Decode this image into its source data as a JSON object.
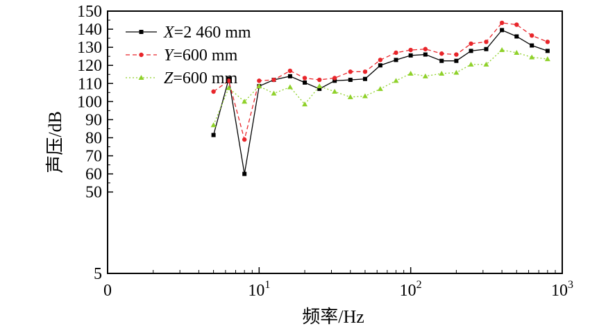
{
  "chart_data": {
    "type": "line",
    "xlabel": "频率/Hz",
    "ylabel": "声压/dB",
    "xscale": "log",
    "xlim": [
      1,
      1000
    ],
    "ylim": [
      5,
      150
    ],
    "x_ticks": [
      {
        "value": 1,
        "base": "0",
        "exp": ""
      },
      {
        "value": 10,
        "base": "10",
        "exp": "1"
      },
      {
        "value": 100,
        "base": "10",
        "exp": "2"
      },
      {
        "value": 1000,
        "base": "10",
        "exp": "3"
      }
    ],
    "y_ticks": [
      5,
      50,
      60,
      70,
      80,
      90,
      100,
      110,
      120,
      130,
      140,
      150
    ],
    "grid": false,
    "legend_position": "top-left",
    "x": [
      5,
      6.3,
      8,
      10,
      12.5,
      16,
      20,
      25,
      31.5,
      40,
      50,
      63,
      80,
      100,
      125,
      160,
      200,
      250,
      315,
      400,
      500,
      630,
      800
    ],
    "series": [
      {
        "name_var": "X",
        "name_rest": "=2 460 mm",
        "color": "#000000",
        "marker": "square",
        "dash": "solid",
        "values": [
          81.5,
          112.5,
          60,
          108.5,
          112,
          114,
          110.5,
          107,
          111.5,
          112,
          112.5,
          120,
          123,
          125.5,
          126,
          122.5,
          122.5,
          128,
          129,
          139.5,
          136,
          131,
          128
        ]
      },
      {
        "name_var": "Y",
        "name_rest": "=600 mm",
        "color": "#e8252a",
        "marker": "circle",
        "dash": "dashed",
        "values": [
          105.5,
          111.5,
          79,
          111.5,
          112,
          117,
          113,
          112,
          113,
          116.5,
          116.5,
          123,
          127,
          128.5,
          129,
          126.5,
          126,
          132,
          133,
          143.5,
          142.5,
          136.5,
          133
        ]
      },
      {
        "name_var": "Z",
        "name_rest": "=600 mm",
        "color": "#8fd12a",
        "marker": "triangle",
        "dash": "dotted",
        "values": [
          87,
          107.5,
          100,
          108.5,
          104.5,
          108,
          98.5,
          108.5,
          105.5,
          102.5,
          103,
          107,
          111.5,
          115.5,
          114,
          115.5,
          116,
          120.5,
          120.5,
          128.5,
          127,
          124.5,
          123.5
        ]
      }
    ]
  }
}
